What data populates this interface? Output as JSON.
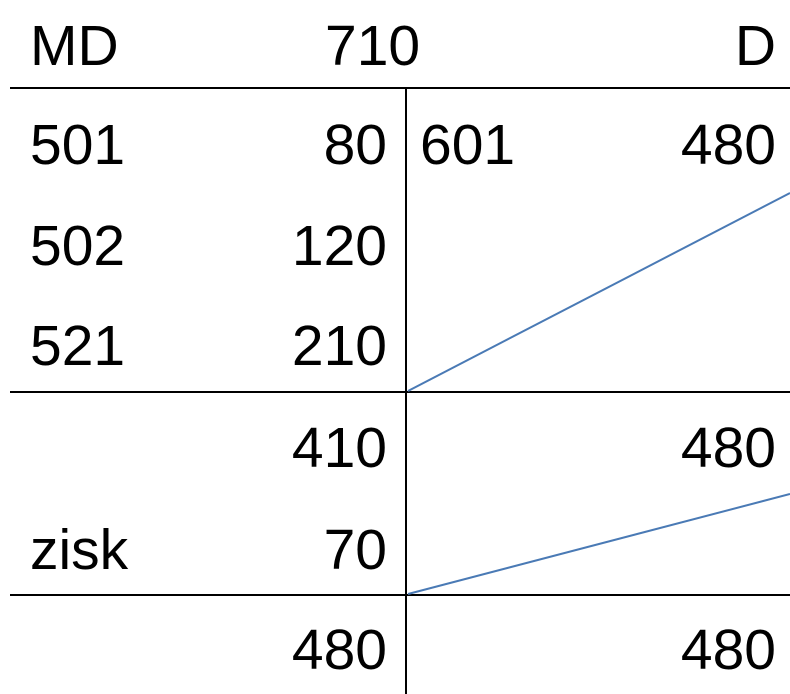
{
  "account": {
    "debit_header": "MD",
    "number": "710",
    "credit_header": "D"
  },
  "rows": [
    {
      "debit_code": "501",
      "debit_amount": "80",
      "credit_code": "601",
      "credit_amount": "480"
    },
    {
      "debit_code": "502",
      "debit_amount": "120"
    },
    {
      "debit_code": "521",
      "debit_amount": "210"
    }
  ],
  "subtotal": {
    "debit_amount": "410",
    "credit_amount": "480"
  },
  "profit": {
    "label": "zisk",
    "amount": "70"
  },
  "total": {
    "debit_amount": "480",
    "credit_amount": "480"
  },
  "colors": {
    "ink": "#000000",
    "closing_line": "#4a7ab5"
  }
}
